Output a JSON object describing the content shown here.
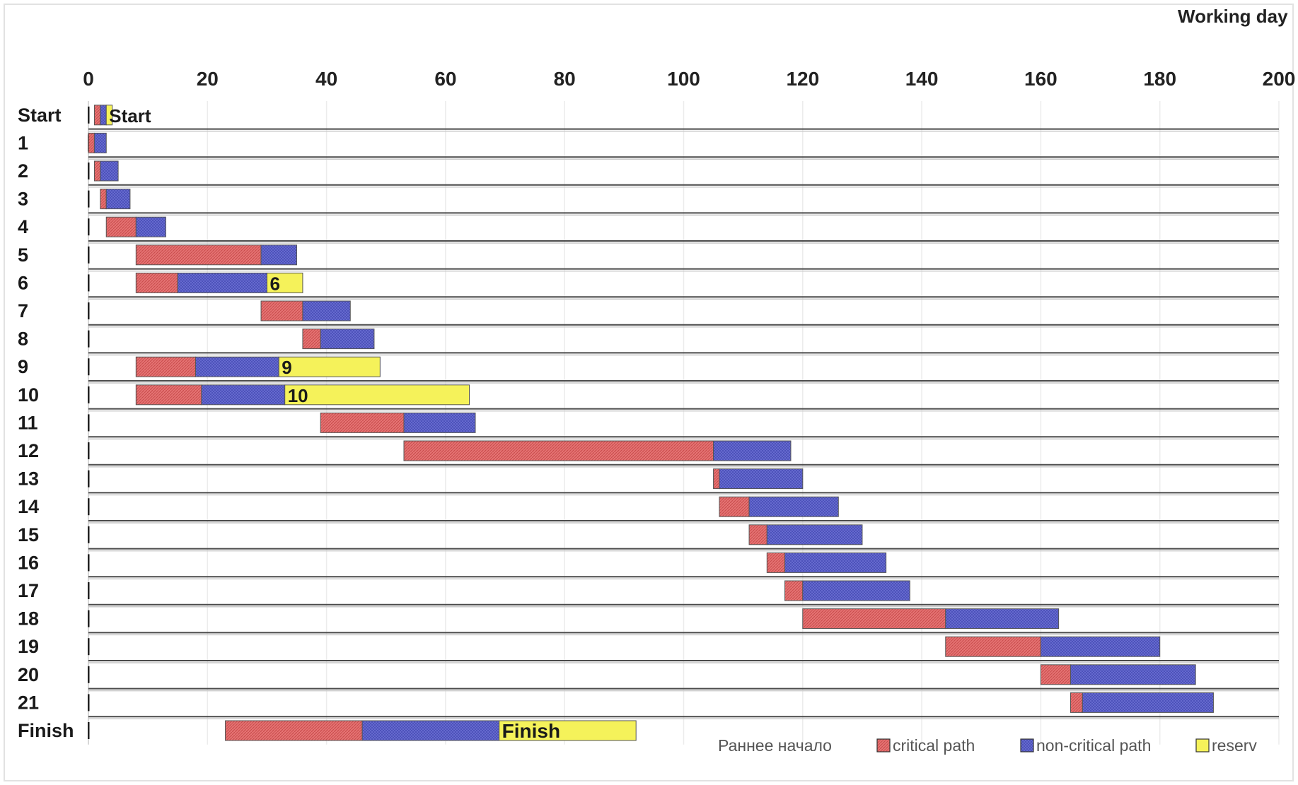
{
  "chart_data": {
    "type": "bar",
    "subtype": "stacked-horizontal-gantt",
    "title": "Working day",
    "xlim": [
      0,
      200
    ],
    "xticks": [
      0,
      20,
      40,
      60,
      80,
      100,
      120,
      140,
      160,
      180,
      200
    ],
    "grid": true,
    "legend_position": "bottom-right",
    "legend": [
      {
        "key": "start",
        "label": "Раннее начало"
      },
      {
        "key": "critical",
        "label": "critical path"
      },
      {
        "key": "noncritical",
        "label": "non-critical path"
      },
      {
        "key": "reserve",
        "label": "reserv"
      }
    ],
    "colors": {
      "critical": "#e57373",
      "noncritical": "#6f73d6",
      "reserve": "#f5f25a",
      "border": "#555555",
      "row_line": "#4a4a4a"
    },
    "categories": [
      "Start",
      "1",
      "2",
      "3",
      "4",
      "5",
      "6",
      "7",
      "8",
      "9",
      "10",
      "11",
      "12",
      "13",
      "14",
      "15",
      "16",
      "17",
      "18",
      "19",
      "20",
      "21",
      "Finish"
    ],
    "series": [
      {
        "key": "start",
        "values": [
          1,
          0,
          1,
          2,
          3,
          8,
          8,
          29,
          36,
          8,
          8,
          39,
          53,
          105,
          106,
          111,
          114,
          117,
          120,
          144,
          160,
          165,
          23
        ]
      },
      {
        "key": "critical",
        "values": [
          1,
          1,
          1,
          1,
          5,
          21,
          7,
          7,
          3,
          10,
          11,
          14,
          52,
          1,
          5,
          3,
          3,
          3,
          24,
          16,
          5,
          2,
          23
        ]
      },
      {
        "key": "noncritical",
        "values": [
          1,
          2,
          3,
          4,
          5,
          6,
          15,
          8,
          9,
          14,
          14,
          12,
          13,
          14,
          15,
          16,
          17,
          18,
          19,
          20,
          21,
          22,
          23
        ]
      },
      {
        "key": "reserve",
        "values": [
          1,
          0,
          0,
          0,
          0,
          0,
          6,
          0,
          0,
          17,
          31,
          0,
          0,
          0,
          0,
          0,
          0,
          0,
          0,
          0,
          0,
          0,
          23
        ]
      }
    ],
    "bar_labels": [
      {
        "category": "Start",
        "text": "Start"
      },
      {
        "category": "6",
        "text": "6"
      },
      {
        "category": "9",
        "text": "9"
      },
      {
        "category": "10",
        "text": "10"
      },
      {
        "category": "Finish",
        "text": "Finish"
      }
    ]
  }
}
